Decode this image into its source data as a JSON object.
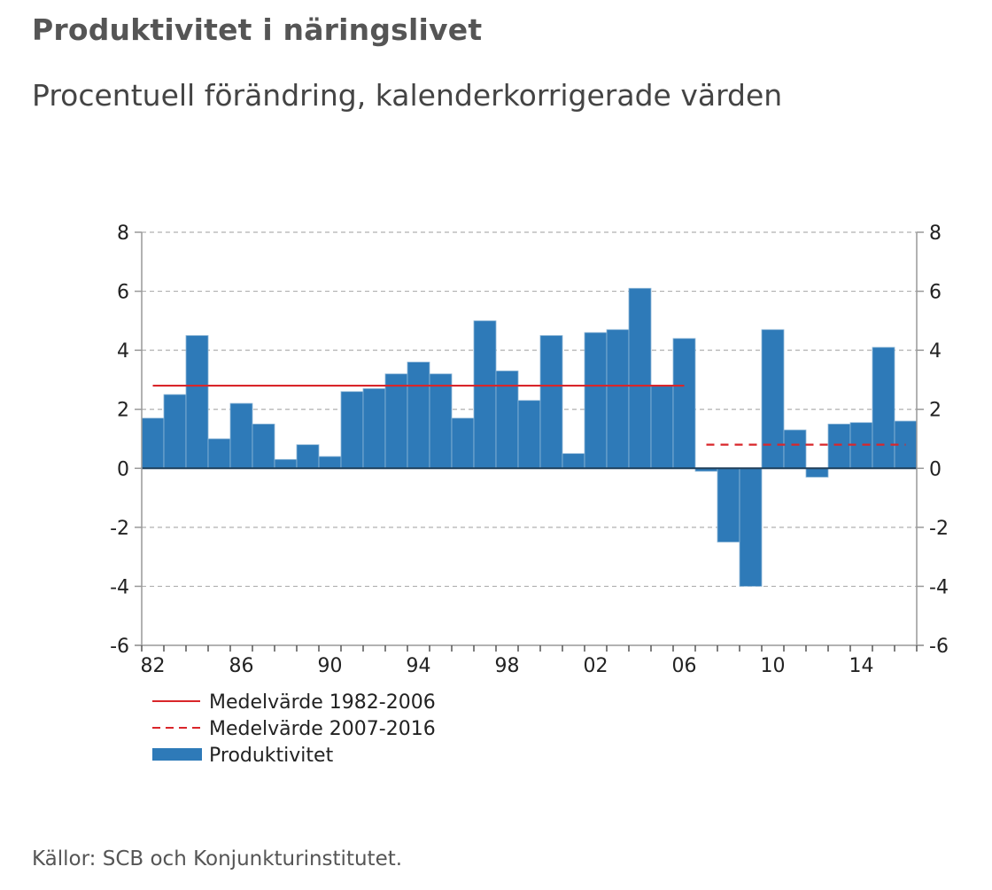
{
  "header": {
    "title": "Produktivitet i näringslivet",
    "subtitle": "Procentuell förändring, kalenderkorrigerade värden"
  },
  "footer": {
    "source": "Källor: SCB och Konjunkturinstitutet."
  },
  "colors": {
    "bar": "#2e7ab8",
    "mean_line": "#d9262a",
    "grid": "#b0b0b0",
    "axis": "#999999",
    "zero_line": "#1f3f5a"
  },
  "chart_data": {
    "type": "bar",
    "title": "Produktivitet i näringslivet",
    "subtitle": "Procentuell förändring, kalenderkorrigerade värden",
    "xlabel": "",
    "ylabel": "",
    "categories": [
      "1982",
      "1983",
      "1984",
      "1985",
      "1986",
      "1987",
      "1988",
      "1989",
      "1990",
      "1991",
      "1992",
      "1993",
      "1994",
      "1995",
      "1996",
      "1997",
      "1998",
      "1999",
      "2000",
      "2001",
      "2002",
      "2003",
      "2004",
      "2005",
      "2006",
      "2007",
      "2008",
      "2009",
      "2010",
      "2011",
      "2012",
      "2013",
      "2014",
      "2015",
      "2016"
    ],
    "series": [
      {
        "name": "Produktivitet",
        "type": "bar",
        "values": [
          1.7,
          2.5,
          4.5,
          1.0,
          2.2,
          1.5,
          0.3,
          0.8,
          0.4,
          2.6,
          2.7,
          3.2,
          3.6,
          3.2,
          1.7,
          5.0,
          3.3,
          2.3,
          4.5,
          0.5,
          4.6,
          4.7,
          6.1,
          2.8,
          4.4,
          -0.1,
          -2.5,
          -4.0,
          4.7,
          1.3,
          -0.3,
          1.5,
          1.55,
          4.1,
          1.6
        ]
      },
      {
        "name": "Medelvärde 1982-2006",
        "type": "line",
        "style": "solid",
        "from": "1982",
        "to": "2006",
        "value": 2.8
      },
      {
        "name": "Medelvärde 2007-2016",
        "type": "line",
        "style": "dashed",
        "from": "2007",
        "to": "2016",
        "value": 0.8
      }
    ],
    "ylim": [
      -6,
      8
    ],
    "yticks": [
      8,
      6,
      4,
      2,
      0,
      -2,
      -4,
      -6
    ],
    "ytick_labels": [
      "8",
      "6",
      "4",
      "2",
      "0",
      "-2",
      "-4",
      "-6"
    ],
    "xtick_labels": [
      {
        "category": "1982",
        "label": "82"
      },
      {
        "category": "1986",
        "label": "86"
      },
      {
        "category": "1990",
        "label": "90"
      },
      {
        "category": "1994",
        "label": "94"
      },
      {
        "category": "1998",
        "label": "98"
      },
      {
        "category": "2002",
        "label": "02"
      },
      {
        "category": "2006",
        "label": "06"
      },
      {
        "category": "2010",
        "label": "10"
      },
      {
        "category": "2014",
        "label": "14"
      }
    ],
    "grid": true,
    "grid_style": "dashed horizontal",
    "dual_y_axis": true,
    "legend": {
      "placement": "bottom-left",
      "entries": [
        {
          "label": "Medelvärde 1982-2006",
          "symbol": "solid-line"
        },
        {
          "label": "Medelvärde 2007-2016",
          "symbol": "dashed-line"
        },
        {
          "label": "Produktivitet",
          "symbol": "bar"
        }
      ]
    }
  }
}
